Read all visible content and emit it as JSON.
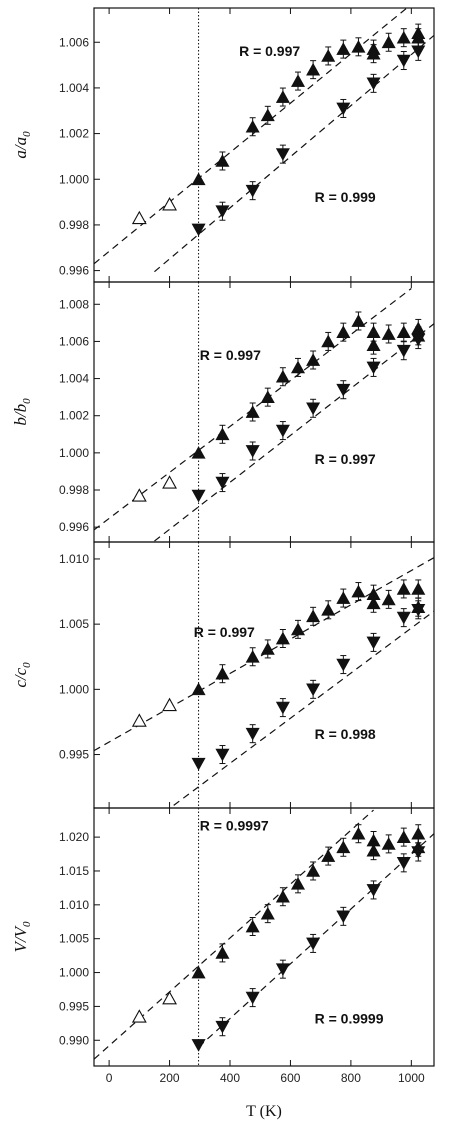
{
  "chart_data": [
    {
      "type": "scatter",
      "ylabel_main": "a/a",
      "ylabel_sub": "0",
      "xlim": [
        -50,
        1075
      ],
      "ylim": [
        0.9955,
        1.0075
      ],
      "yticks": [
        0.996,
        0.998,
        1.0,
        1.002,
        1.004,
        1.006
      ],
      "ytick_labels": [
        "0.996",
        "0.998",
        "1.000",
        "1.002",
        "1.004",
        "1.006"
      ],
      "grid": false,
      "vertical_line_x": 296,
      "annotations": [
        {
          "text": "R = 0.997",
          "x": 430,
          "y": 1.0054
        },
        {
          "text": "R = 0.999",
          "x": 680,
          "y": 0.999
        }
      ],
      "series": [
        {
          "marker": "open-triangle-up",
          "x": [
            100,
            200
          ],
          "y": [
            0.9983,
            0.9989
          ]
        },
        {
          "marker": "filled-triangle-up",
          "x": [
            296,
            375,
            475,
            525,
            575,
            625,
            675,
            725,
            775,
            825,
            875,
            875,
            925,
            975,
            1023,
            1023
          ],
          "y": [
            1.0,
            1.0008,
            1.0023,
            1.0028,
            1.0036,
            1.0043,
            1.0048,
            1.0054,
            1.0057,
            1.0058,
            1.0057,
            1.0055,
            1.006,
            1.0062,
            1.0064,
            1.0062
          ]
        },
        {
          "marker": "filled-triangle-down",
          "x": [
            296,
            375,
            475,
            575,
            775,
            875,
            975,
            1023
          ],
          "y": [
            0.9978,
            0.9986,
            0.9995,
            1.0011,
            1.0031,
            1.0042,
            1.0052,
            1.0056
          ]
        }
      ],
      "fit_lines": [
        {
          "x": [
            -50,
            1000
          ],
          "y": [
            0.9963,
            1.00766
          ]
        },
        {
          "x": [
            150,
            1075
          ],
          "y": [
            0.99595,
            1.0063
          ]
        }
      ]
    },
    {
      "type": "scatter",
      "ylabel_main": "b/b",
      "ylabel_sub": "0",
      "xlim": [
        -50,
        1075
      ],
      "ylim": [
        0.9952,
        1.0092
      ],
      "yticks": [
        0.996,
        0.998,
        1.0,
        1.002,
        1.004,
        1.006,
        1.008
      ],
      "ytick_labels": [
        "0.996",
        "0.998",
        "1.000",
        "1.002",
        "1.004",
        "1.006",
        "1.008"
      ],
      "grid": false,
      "vertical_line_x": 296,
      "annotations": [
        {
          "text": "R = 0.997",
          "x": 300,
          "y": 1.005
        },
        {
          "text": "R = 0.997",
          "x": 680,
          "y": 0.9994
        }
      ],
      "series": [
        {
          "marker": "open-triangle-up",
          "x": [
            100,
            200
          ],
          "y": [
            0.9977,
            0.9984
          ]
        },
        {
          "marker": "filled-triangle-up",
          "x": [
            296,
            375,
            475,
            525,
            575,
            625,
            675,
            725,
            775,
            825,
            875,
            875,
            925,
            975,
            1023,
            1023
          ],
          "y": [
            1.0,
            1.001,
            1.0022,
            1.003,
            1.0041,
            1.0046,
            1.005,
            1.006,
            1.0065,
            1.0071,
            1.0065,
            1.0058,
            1.0064,
            1.0065,
            1.0067,
            1.0063
          ]
        },
        {
          "marker": "filled-triangle-down",
          "x": [
            296,
            375,
            475,
            575,
            675,
            775,
            875,
            975,
            1023
          ],
          "y": [
            0.9977,
            0.9984,
            1.0001,
            1.0012,
            1.0024,
            1.0034,
            1.0046,
            1.0055,
            1.0061
          ]
        }
      ],
      "fit_lines": [
        {
          "x": [
            -50,
            1000
          ],
          "y": [
            0.99585,
            1.00885
          ]
        },
        {
          "x": [
            150,
            1075
          ],
          "y": [
            0.99525,
            1.00695
          ]
        }
      ]
    },
    {
      "type": "scatter",
      "ylabel_main": "c/c",
      "ylabel_sub": "0",
      "xlim": [
        -50,
        1075
      ],
      "ylim": [
        0.9909,
        1.0113
      ],
      "yticks": [
        0.995,
        1.0,
        1.005,
        1.01
      ],
      "ytick_labels": [
        "0.995",
        "1.000",
        "1.005",
        "1.010"
      ],
      "grid": false,
      "vertical_line_x": 296,
      "annotations": [
        {
          "text": "R = 0.997",
          "x": 280,
          "y": 1.004
        },
        {
          "text": "R = 0.998",
          "x": 680,
          "y": 0.9962
        }
      ],
      "series": [
        {
          "marker": "open-triangle-up",
          "x": [
            100,
            200
          ],
          "y": [
            0.9976,
            0.9988
          ]
        },
        {
          "marker": "filled-triangle-up",
          "x": [
            296,
            375,
            475,
            525,
            575,
            625,
            675,
            725,
            775,
            825,
            875,
            875,
            925,
            975,
            1023,
            1023
          ],
          "y": [
            1.0,
            1.0012,
            1.0025,
            1.0031,
            1.0039,
            1.0046,
            1.0056,
            1.0061,
            1.007,
            1.0075,
            1.0073,
            1.0066,
            1.0069,
            1.0077,
            1.0077,
            1.0063
          ]
        },
        {
          "marker": "filled-triangle-down",
          "x": [
            296,
            375,
            475,
            575,
            675,
            775,
            875,
            975,
            1023
          ],
          "y": [
            0.9943,
            0.995,
            0.9966,
            0.9986,
            1.0,
            1.0019,
            1.0036,
            1.0055,
            1.0061
          ]
        }
      ],
      "fit_lines": [
        {
          "x": [
            -50,
            1075
          ],
          "y": [
            0.9953,
            1.0101
          ]
        },
        {
          "x": [
            150,
            1075
          ],
          "y": [
            0.99,
            1.006
          ]
        }
      ]
    },
    {
      "type": "scatter",
      "ylabel_main": "V/V",
      "ylabel_sub": "0",
      "xlim": [
        -50,
        1075
      ],
      "ylim": [
        0.9862,
        1.0243
      ],
      "yticks": [
        0.99,
        0.995,
        1.0,
        1.005,
        1.01,
        1.015,
        1.02
      ],
      "ytick_labels": [
        "0.990",
        "0.995",
        "1.000",
        "1.005",
        "1.010",
        "1.015",
        "1.020"
      ],
      "xticks": [
        0,
        200,
        400,
        600,
        800,
        1000
      ],
      "xtick_labels": [
        "0",
        "200",
        "400",
        "600",
        "800",
        "1000"
      ],
      "xlabel": "T (K)",
      "grid": false,
      "vertical_line_x": 296,
      "annotations": [
        {
          "text": "R = 0.9997",
          "x": 300,
          "y": 1.021
        },
        {
          "text": "R = 0.9999",
          "x": 680,
          "y": 0.9925
        }
      ],
      "series": [
        {
          "marker": "open-triangle-up",
          "x": [
            100,
            200
          ],
          "y": [
            0.9935,
            0.9962
          ]
        },
        {
          "marker": "filled-triangle-up",
          "x": [
            296,
            375,
            475,
            525,
            575,
            625,
            675,
            725,
            775,
            825,
            875,
            875,
            925,
            975,
            1023,
            1023
          ],
          "y": [
            1.0,
            1.0029,
            1.0068,
            1.0087,
            1.0112,
            1.0131,
            1.015,
            1.0172,
            1.0185,
            1.0205,
            1.0195,
            1.018,
            1.019,
            1.02,
            1.0205,
            1.0185
          ]
        },
        {
          "marker": "filled-triangle-down",
          "x": [
            296,
            375,
            475,
            575,
            675,
            775,
            875,
            975,
            1023
          ],
          "y": [
            0.9893,
            0.992,
            0.9963,
            1.0005,
            1.0043,
            1.0083,
            1.0122,
            1.0162,
            1.0178
          ]
        }
      ],
      "fit_lines": [
        {
          "x": [
            -50,
            875
          ],
          "y": [
            0.9872,
            1.024
          ]
        },
        {
          "x": [
            296,
            1075
          ],
          "y": [
            0.989,
            1.0205
          ]
        }
      ]
    }
  ]
}
